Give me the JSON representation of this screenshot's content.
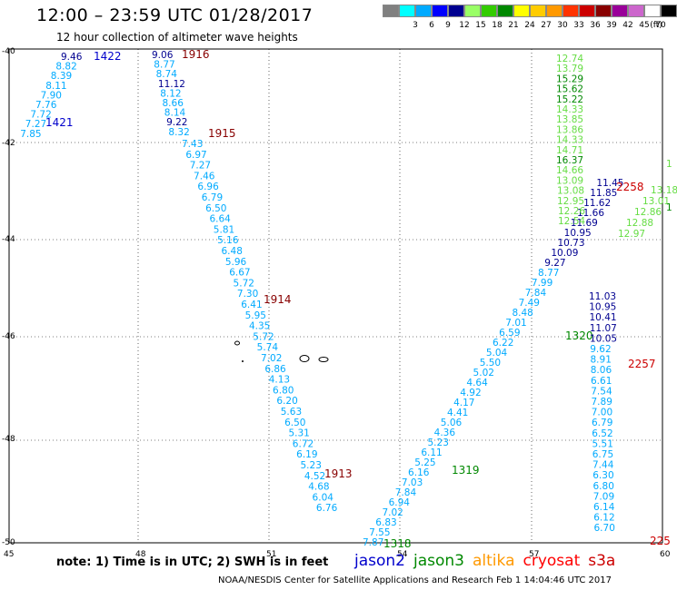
{
  "header": {
    "title": "12:00 – 23:59 UTC 01/28/2017",
    "subtitle": "12 hour collection of altimeter wave heights"
  },
  "legend": {
    "unit": "(ft)",
    "items": [
      {
        "color": "#808080",
        "label": ""
      },
      {
        "color": "#00ffff",
        "label": "3"
      },
      {
        "color": "#00aaff",
        "label": "6"
      },
      {
        "color": "#0000ff",
        "label": "9"
      },
      {
        "color": "#000090",
        "label": "12"
      },
      {
        "color": "#99ff66",
        "label": "15"
      },
      {
        "color": "#33cc00",
        "label": "18"
      },
      {
        "color": "#008800",
        "label": "21"
      },
      {
        "color": "#ffff00",
        "label": "24"
      },
      {
        "color": "#ffcc00",
        "label": "27"
      },
      {
        "color": "#ff9900",
        "label": "30"
      },
      {
        "color": "#ff3300",
        "label": "33"
      },
      {
        "color": "#cc0000",
        "label": "36"
      },
      {
        "color": "#880000",
        "label": "39"
      },
      {
        "color": "#990099",
        "label": "42"
      },
      {
        "color": "#cc66cc",
        "label": "45"
      },
      {
        "color": "#ffffff",
        "label": "70"
      },
      {
        "color": "#000000",
        "label": ""
      }
    ]
  },
  "axes": {
    "lat_labels": [
      "-40",
      "-42",
      "-44",
      "-46",
      "-48",
      "-50"
    ],
    "lon_labels": [
      "45",
      "48",
      "51",
      "54",
      "57",
      "60"
    ]
  },
  "colors": {
    "cyan": "#00aaff",
    "navy": "#000090",
    "lightgreen": "#66dd44",
    "darkgreen": "#008800",
    "red": "#cc0000",
    "darkred": "#880000",
    "blue": "#0000cc"
  },
  "tracks": [
    {
      "time": "1422",
      "time_color": "blue",
      "values": [
        [
          "9.46",
          "navy"
        ],
        [
          "8.82",
          "cyan"
        ],
        [
          "8.39",
          "cyan"
        ],
        [
          "8.11",
          "cyan"
        ],
        [
          "7.90",
          "cyan"
        ],
        [
          "7.76",
          "cyan"
        ],
        [
          "7.72",
          "cyan"
        ],
        [
          "7.27",
          "cyan"
        ],
        [
          "7.85",
          "cyan"
        ]
      ]
    },
    {
      "time": "1421",
      "time_color": "blue"
    },
    {
      "time": "1916",
      "time_color": "darkred",
      "values": [
        [
          "9.06",
          "navy"
        ],
        [
          "8.77",
          "cyan"
        ],
        [
          "8.74",
          "cyan"
        ],
        [
          "11.12",
          "navy"
        ],
        [
          "8.12",
          "cyan"
        ],
        [
          "8.66",
          "cyan"
        ],
        [
          "8.14",
          "cyan"
        ],
        [
          "9.22",
          "navy"
        ],
        [
          "8.32",
          "cyan"
        ]
      ]
    },
    {
      "time": "1915",
      "time_color": "darkred",
      "values": [
        [
          "7.43",
          "cyan"
        ],
        [
          "6.97",
          "cyan"
        ],
        [
          "7.27",
          "cyan"
        ],
        [
          "7.46",
          "cyan"
        ],
        [
          "6.96",
          "cyan"
        ],
        [
          "6.79",
          "cyan"
        ],
        [
          "6.50",
          "cyan"
        ],
        [
          "6.64",
          "cyan"
        ],
        [
          "5.81",
          "cyan"
        ],
        [
          "5.16",
          "cyan"
        ],
        [
          "6.48",
          "cyan"
        ],
        [
          "5.96",
          "cyan"
        ],
        [
          "6.67",
          "cyan"
        ],
        [
          "5.72",
          "cyan"
        ],
        [
          "7.30",
          "cyan"
        ],
        [
          "6.41",
          "cyan"
        ],
        [
          "5.95",
          "cyan"
        ],
        [
          "4.35",
          "cyan"
        ],
        [
          "5.72",
          "cyan"
        ],
        [
          "5.74",
          "cyan"
        ],
        [
          "7.02",
          "cyan"
        ],
        [
          "6.86",
          "cyan"
        ],
        [
          "4.13",
          "cyan"
        ],
        [
          "6.80",
          "cyan"
        ],
        [
          "6.20",
          "cyan"
        ],
        [
          "5.63",
          "cyan"
        ],
        [
          "6.50",
          "cyan"
        ],
        [
          "5.31",
          "cyan"
        ],
        [
          "6.72",
          "cyan"
        ],
        [
          "6.19",
          "cyan"
        ],
        [
          "5.23",
          "cyan"
        ],
        [
          "4.52",
          "cyan"
        ],
        [
          "4.68",
          "cyan"
        ],
        [
          "6.04",
          "cyan"
        ],
        [
          "6.76",
          "cyan"
        ]
      ]
    },
    {
      "time": "1914",
      "time_color": "darkred"
    },
    {
      "time": "1913",
      "time_color": "darkred"
    },
    {
      "time": "1318",
      "time_color": "darkgreen",
      "values": [
        [
          "7.87",
          "cyan"
        ],
        [
          "7.55",
          "cyan"
        ],
        [
          "6.83",
          "cyan"
        ],
        [
          "7.02",
          "cyan"
        ],
        [
          "6.94",
          "cyan"
        ],
        [
          "7.84",
          "cyan"
        ],
        [
          "7.03",
          "cyan"
        ],
        [
          "6.16",
          "cyan"
        ],
        [
          "5.25",
          "cyan"
        ],
        [
          "6.11",
          "cyan"
        ],
        [
          "5.23",
          "cyan"
        ],
        [
          "4.36",
          "cyan"
        ],
        [
          "5.06",
          "cyan"
        ],
        [
          "4.41",
          "cyan"
        ],
        [
          "4.17",
          "cyan"
        ],
        [
          "4.92",
          "cyan"
        ],
        [
          "4.64",
          "cyan"
        ],
        [
          "5.02",
          "cyan"
        ],
        [
          "5.50",
          "cyan"
        ],
        [
          "5.04",
          "cyan"
        ],
        [
          "6.22",
          "cyan"
        ],
        [
          "6.59",
          "cyan"
        ],
        [
          "7.01",
          "cyan"
        ],
        [
          "8.48",
          "cyan"
        ],
        [
          "7.49",
          "cyan"
        ],
        [
          "7.84",
          "cyan"
        ],
        [
          "7.99",
          "cyan"
        ],
        [
          "8.77",
          "cyan"
        ],
        [
          "9.27",
          "navy"
        ],
        [
          "10.09",
          "navy"
        ],
        [
          "10.73",
          "navy"
        ],
        [
          "10.95",
          "navy"
        ],
        [
          "11.69",
          "navy"
        ],
        [
          "11.66",
          "navy"
        ],
        [
          "11.62",
          "navy"
        ],
        [
          "11.85",
          "navy"
        ],
        [
          "11.45",
          "navy"
        ]
      ]
    },
    {
      "time": "1319",
      "time_color": "darkgreen"
    },
    {
      "time": "1320",
      "time_color": "darkgreen",
      "values": [
        [
          "12.54",
          "lightgreen"
        ],
        [
          "12.26",
          "lightgreen"
        ],
        [
          "12.95",
          "lightgreen"
        ],
        [
          "13.08",
          "lightgreen"
        ],
        [
          "13.09",
          "lightgreen"
        ],
        [
          "14.66",
          "lightgreen"
        ],
        [
          "16.37",
          "darkgreen"
        ],
        [
          "14.71",
          "lightgreen"
        ],
        [
          "14.33",
          "lightgreen"
        ],
        [
          "13.86",
          "lightgreen"
        ],
        [
          "13.85",
          "lightgreen"
        ],
        [
          "14.33",
          "lightgreen"
        ],
        [
          "15.22",
          "darkgreen"
        ],
        [
          "15.62",
          "darkgreen"
        ],
        [
          "15.29",
          "darkgreen"
        ],
        [
          "13.79",
          "lightgreen"
        ],
        [
          "12.74",
          "lightgreen"
        ],
        [
          "12.97",
          "lightgreen"
        ],
        [
          "12.88",
          "lightgreen"
        ],
        [
          "12.86",
          "lightgreen"
        ],
        [
          "13.01",
          "lightgreen"
        ],
        [
          "13.18",
          "lightgreen"
        ]
      ]
    },
    {
      "time": "2258",
      "time_color": "red"
    },
    {
      "time": "2257",
      "time_color": "red",
      "values": [
        [
          "11.03",
          "navy"
        ],
        [
          "10.95",
          "navy"
        ],
        [
          "10.41",
          "navy"
        ],
        [
          "11.07",
          "navy"
        ],
        [
          "10.05",
          "navy"
        ],
        [
          "9.62",
          "cyan"
        ],
        [
          "8.91",
          "cyan"
        ],
        [
          "8.06",
          "cyan"
        ],
        [
          "6.61",
          "cyan"
        ],
        [
          "7.54",
          "cyan"
        ],
        [
          "7.89",
          "cyan"
        ],
        [
          "7.00",
          "cyan"
        ],
        [
          "6.79",
          "cyan"
        ],
        [
          "6.52",
          "cyan"
        ],
        [
          "5.51",
          "cyan"
        ],
        [
          "6.75",
          "cyan"
        ],
        [
          "7.44",
          "cyan"
        ],
        [
          "6.30",
          "cyan"
        ],
        [
          "6.80",
          "cyan"
        ],
        [
          "7.09",
          "cyan"
        ],
        [
          "6.14",
          "cyan"
        ],
        [
          "6.12",
          "cyan"
        ],
        [
          "6.70",
          "cyan"
        ]
      ]
    },
    {
      "time": "225",
      "time_color": "red"
    }
  ],
  "note": "note: 1) Time is in UTC; 2) SWH is in feet",
  "satellites": [
    {
      "name": "jason2",
      "color": "#0000cc"
    },
    {
      "name": "jason3",
      "color": "#008800"
    },
    {
      "name": "altika",
      "color": "#ff9900"
    },
    {
      "name": "cryosat",
      "color": "#ff0000"
    },
    {
      "name": "s3a",
      "color": "#cc0000"
    }
  ],
  "footer": "NOAA/NESDIS Center for Satellite Applications and Research     Feb  1 14:04:46 UTC 2017"
}
